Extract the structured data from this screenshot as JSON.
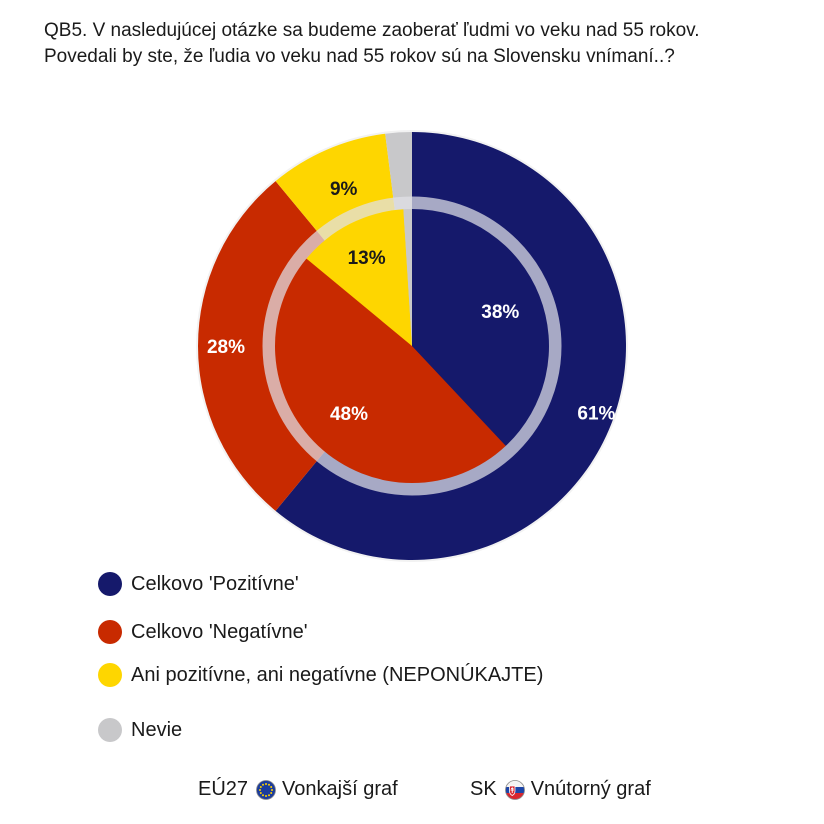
{
  "title": {
    "line1": "QB5. V nasledujúcej otázke sa budeme zaoberať ľudmi vo veku nad 55 rokov.",
    "line2": "Povedali by ste, že ľudia vo veku nad 55 rokov sú na Slovensku vnímaní..?"
  },
  "chart_data": {
    "type": "pie",
    "variant": "nested-donut",
    "categories": [
      "Celkovo 'Pozitívne'",
      "Celkovo 'Negatívne'",
      "Ani pozitívne, ani negatívne (NEPONÚKAJTE)",
      "Nevie"
    ],
    "colors": [
      "#15196b",
      "#c82a00",
      "#fed600",
      "#c8c8ca"
    ],
    "series": [
      {
        "name": "EÚ27 Vonkajší graf",
        "ring": "outer",
        "values": [
          61,
          28,
          9,
          2
        ],
        "labels": [
          "61%",
          "28%",
          "9%",
          ""
        ]
      },
      {
        "name": "SK Vnútorný graf",
        "ring": "inner",
        "values": [
          38,
          48,
          13,
          1
        ],
        "labels": [
          "38%",
          "48%",
          "13%",
          ""
        ]
      }
    ],
    "legend_position": "bottom-left"
  },
  "legend": {
    "items": [
      {
        "label": "Celkovo 'Pozitívne'",
        "color": "#15196b"
      },
      {
        "label": "Celkovo 'Negatívne'",
        "color": "#c82a00"
      },
      {
        "label": "Ani pozitívne, ani negatívne (NEPONÚKAJTE)",
        "color": "#fed600"
      },
      {
        "label": "Nevie",
        "color": "#c8c8ca"
      }
    ]
  },
  "footer": {
    "outer_code": "EÚ27",
    "outer_icon": "eu-flag-icon",
    "outer_label": "Vonkajší graf",
    "inner_code": "SK",
    "inner_icon": "sk-flag-icon",
    "inner_label": "Vnútorný graf"
  }
}
